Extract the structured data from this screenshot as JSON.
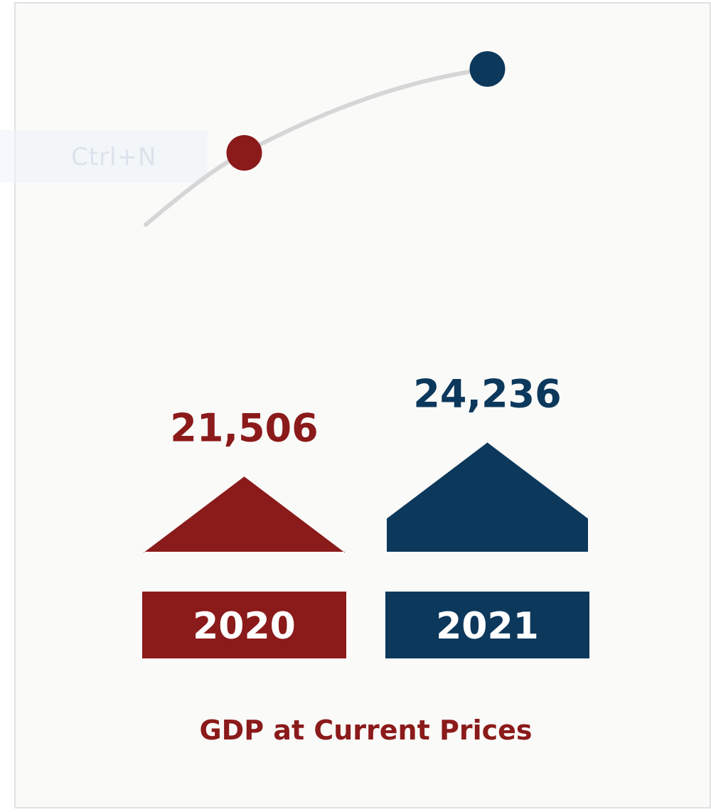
{
  "overlay": {
    "shortcut_label": "Ctrl+N"
  },
  "chart_data": {
    "type": "bar",
    "title": "GDP at Current Prices",
    "categories": [
      "2020",
      "2021"
    ],
    "values": [
      21506,
      24236
    ],
    "value_labels": [
      "21,506",
      "24,236"
    ],
    "colors": [
      "#8b1a1a",
      "#0c385c"
    ],
    "grid": false,
    "legend": "none"
  }
}
